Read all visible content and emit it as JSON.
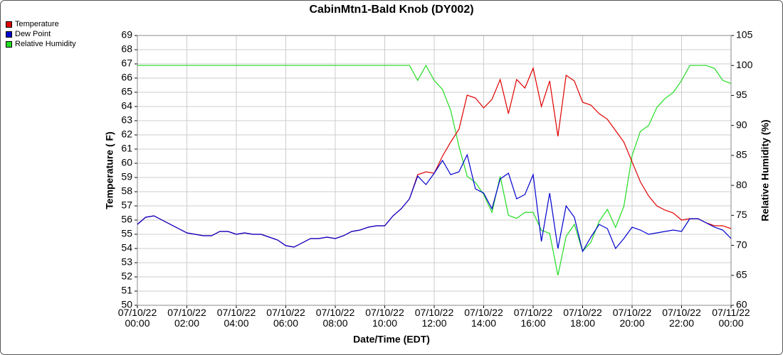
{
  "chart_data": {
    "type": "line",
    "title": "CabinMtn1-Bald Knob (DY002)",
    "xlabel": "Date/Time (EDT)",
    "ylabel": "Temperature ( F)",
    "y2label": "Relative Humidity (%)",
    "xlim": [
      "07/10/22 00:00",
      "07/11/22 00:00"
    ],
    "xticks": [
      "07/10/22 00:00",
      "07/10/22 02:00",
      "07/10/22 04:00",
      "07/10/22 06:00",
      "07/10/22 08:00",
      "07/10/22 10:00",
      "07/10/22 12:00",
      "07/10/22 14:00",
      "07/10/22 16:00",
      "07/10/22 18:00",
      "07/10/22 20:00",
      "07/10/22 22:00",
      "07/11/22 00:00"
    ],
    "ylim": [
      50,
      69
    ],
    "yticks": [
      50,
      51,
      52,
      53,
      54,
      55,
      56,
      57,
      58,
      59,
      60,
      61,
      62,
      63,
      64,
      65,
      66,
      67,
      68,
      69
    ],
    "y2lim": [
      60,
      105
    ],
    "y2ticks": [
      60,
      65,
      70,
      75,
      80,
      85,
      90,
      95,
      100,
      105
    ],
    "grid": true,
    "legend": "top-left",
    "x": [
      "07/10/22 00:00",
      "07/10/22 00:20",
      "07/10/22 00:40",
      "07/10/22 01:00",
      "07/10/22 01:20",
      "07/10/22 01:40",
      "07/10/22 02:00",
      "07/10/22 02:20",
      "07/10/22 02:40",
      "07/10/22 03:00",
      "07/10/22 03:20",
      "07/10/22 03:40",
      "07/10/22 04:00",
      "07/10/22 04:20",
      "07/10/22 04:40",
      "07/10/22 05:00",
      "07/10/22 05:20",
      "07/10/22 05:40",
      "07/10/22 06:00",
      "07/10/22 06:20",
      "07/10/22 06:40",
      "07/10/22 07:00",
      "07/10/22 07:20",
      "07/10/22 07:40",
      "07/10/22 08:00",
      "07/10/22 08:20",
      "07/10/22 08:40",
      "07/10/22 09:00",
      "07/10/22 09:20",
      "07/10/22 09:40",
      "07/10/22 10:00",
      "07/10/22 10:20",
      "07/10/22 10:40",
      "07/10/22 11:00",
      "07/10/22 11:20",
      "07/10/22 11:40",
      "07/10/22 12:00",
      "07/10/22 12:20",
      "07/10/22 12:40",
      "07/10/22 13:00",
      "07/10/22 13:20",
      "07/10/22 13:40",
      "07/10/22 14:00",
      "07/10/22 14:20",
      "07/10/22 14:40",
      "07/10/22 15:00",
      "07/10/22 15:20",
      "07/10/22 15:40",
      "07/10/22 16:00",
      "07/10/22 16:20",
      "07/10/22 16:40",
      "07/10/22 17:00",
      "07/10/22 17:20",
      "07/10/22 17:40",
      "07/10/22 18:00",
      "07/10/22 18:20",
      "07/10/22 18:40",
      "07/10/22 19:00",
      "07/10/22 19:20",
      "07/10/22 19:40",
      "07/10/22 20:00",
      "07/10/22 20:20",
      "07/10/22 20:40",
      "07/10/22 21:00",
      "07/10/22 21:20",
      "07/10/22 21:40",
      "07/10/22 22:00",
      "07/10/22 22:20",
      "07/10/22 22:40",
      "07/10/22 23:00",
      "07/10/22 23:20",
      "07/10/22 23:40",
      "07/11/22 00:00"
    ],
    "series": [
      {
        "name": "Temperature",
        "color": "#e00000",
        "values": [
          55.7,
          56.2,
          56.3,
          56.0,
          55.7,
          55.4,
          55.1,
          55.0,
          54.9,
          54.9,
          55.2,
          55.2,
          55.0,
          55.1,
          55.0,
          55.0,
          54.8,
          54.6,
          54.2,
          54.1,
          54.4,
          54.7,
          54.7,
          54.8,
          54.7,
          54.9,
          55.2,
          55.3,
          55.5,
          55.6,
          55.6,
          56.3,
          56.8,
          57.5,
          59.2,
          59.4,
          59.3,
          60.5,
          61.5,
          62.4,
          64.8,
          64.6,
          63.9,
          64.5,
          65.9,
          63.5,
          65.9,
          65.3,
          66.7,
          64.0,
          65.8,
          61.9,
          66.2,
          65.8,
          64.3,
          64.1,
          63.5,
          63.1,
          62.3,
          61.5,
          60.1,
          58.7,
          57.7,
          57.0,
          56.7,
          56.5,
          56.0,
          56.1,
          56.1,
          55.8,
          55.6,
          55.6,
          55.4
        ]
      },
      {
        "name": "Dew Point",
        "color": "#0000d0",
        "values": [
          55.7,
          56.2,
          56.3,
          56.0,
          55.7,
          55.4,
          55.1,
          55.0,
          54.9,
          54.9,
          55.2,
          55.2,
          55.0,
          55.1,
          55.0,
          55.0,
          54.8,
          54.6,
          54.2,
          54.1,
          54.4,
          54.7,
          54.7,
          54.8,
          54.7,
          54.9,
          55.2,
          55.3,
          55.5,
          55.6,
          55.6,
          56.3,
          56.8,
          57.5,
          59.1,
          58.5,
          59.3,
          60.2,
          59.2,
          59.4,
          60.6,
          58.2,
          57.9,
          56.8,
          58.9,
          59.3,
          57.5,
          57.8,
          59.2,
          54.5,
          57.9,
          54.0,
          57.0,
          56.2,
          53.8,
          54.8,
          55.7,
          55.4,
          54.0,
          54.7,
          55.5,
          55.3,
          55.0,
          55.1,
          55.2,
          55.3,
          55.2,
          56.1,
          56.1,
          55.8,
          55.5,
          55.3,
          54.7
        ]
      },
      {
        "name": "Relative Humidity",
        "color": "#22dd22",
        "axis": "y2",
        "values": [
          100,
          100,
          100,
          100,
          100,
          100,
          100,
          100,
          100,
          100,
          100,
          100,
          100,
          100,
          100,
          100,
          100,
          100,
          100,
          100,
          100,
          100,
          100,
          100,
          100,
          100,
          100,
          100,
          100,
          100,
          100,
          100,
          100,
          100,
          97.5,
          100,
          97.5,
          96,
          92.5,
          86.5,
          81.5,
          80.5,
          78.5,
          75.5,
          81.5,
          75,
          74.5,
          75.5,
          75.5,
          72.5,
          72,
          65,
          71.5,
          73.5,
          69,
          70.5,
          74,
          76,
          73,
          76.5,
          85,
          89,
          90,
          93,
          94.5,
          95.5,
          97.5,
          100,
          100,
          100,
          99.5,
          97.5,
          97
        ]
      }
    ]
  }
}
